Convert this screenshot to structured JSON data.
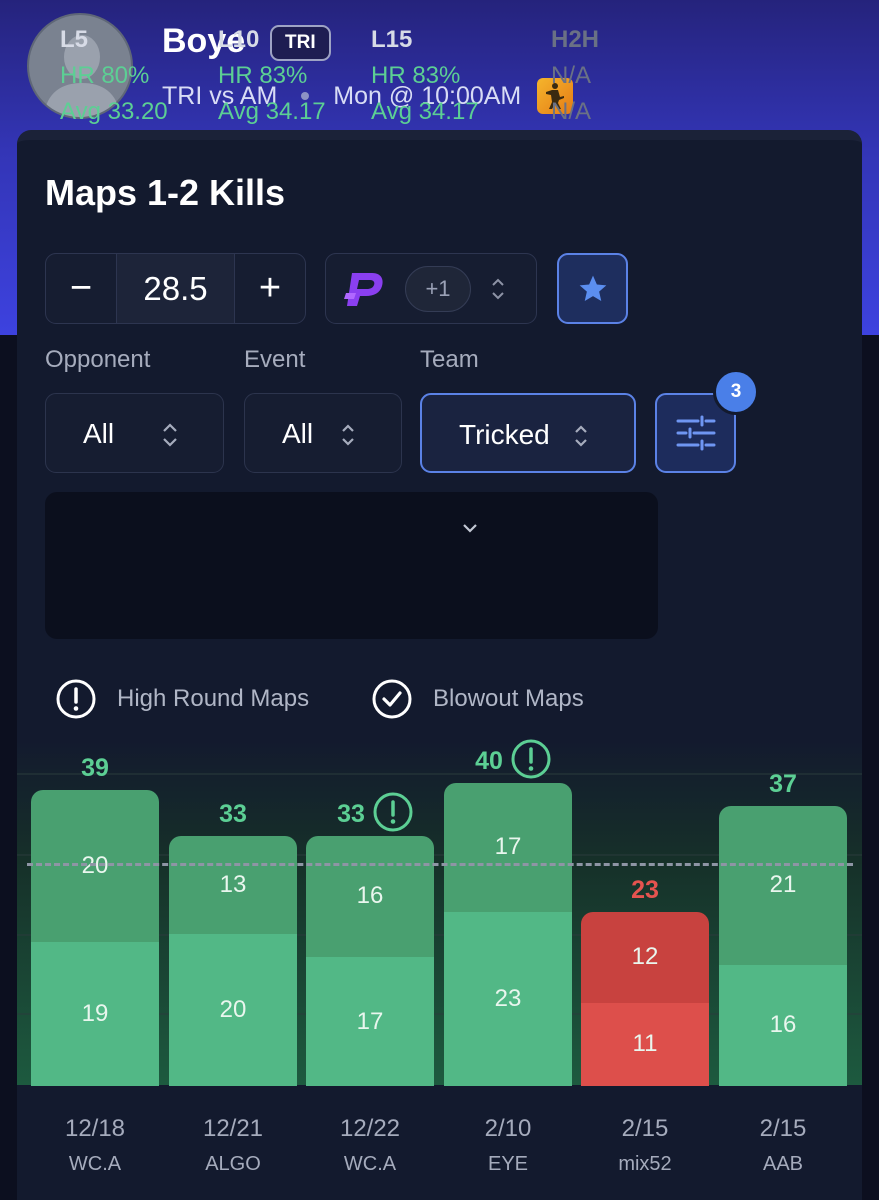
{
  "player": {
    "name": "Boye",
    "team_badge": "TRI",
    "matchup": "TRI vs AM",
    "time": "Mon @ 10:00AM",
    "game_icon": "counter-strike-icon"
  },
  "market": {
    "title": "Maps 1-2 Kills",
    "line": "28.5",
    "decrement": "−",
    "increment": "+",
    "book_logo": "prizepicks-icon",
    "boost": "+1"
  },
  "filters": {
    "opponent": {
      "label": "Opponent",
      "value": "All"
    },
    "event": {
      "label": "Event",
      "value": "All"
    },
    "team": {
      "label": "Team",
      "value": "Tricked"
    },
    "active_count": "3"
  },
  "stats": [
    {
      "label": "L5",
      "hr": "HR 80%",
      "avg": "Avg 33.20"
    },
    {
      "label": "L10",
      "hr": "HR 83%",
      "avg": "Avg 34.17"
    },
    {
      "label": "L15",
      "hr": "HR 83%",
      "avg": "Avg 34.17"
    },
    {
      "label": "H2H",
      "hr": "N/A",
      "avg": "N/A"
    }
  ],
  "legend": {
    "high_round": "High Round Maps",
    "blowout": "Blowout Maps"
  },
  "colors": {
    "over_bottom": "#52b886",
    "over_top": "#49a070",
    "under_bottom": "#dd4f4b",
    "under_top": "#c8423f",
    "over_text": "#5ccf94",
    "under_text": "#e5534f",
    "accent": "#5b82e6"
  },
  "chart_data": {
    "type": "bar",
    "stacked": true,
    "line": 28.5,
    "categories": [
      "12/18",
      "12/21",
      "12/22",
      "2/10",
      "2/15",
      "2/15"
    ],
    "events": [
      "WC.A",
      "ALGO",
      "WC.A",
      "EYE",
      "mix52",
      "AAB"
    ],
    "series": [
      {
        "values": [
          19,
          20,
          17,
          23,
          11,
          16
        ]
      },
      {
        "values": [
          20,
          13,
          16,
          17,
          12,
          21
        ]
      }
    ],
    "totals": [
      "39",
      "33",
      "33",
      "40",
      "23",
      "37"
    ],
    "high_round_flags": [
      false,
      false,
      true,
      true,
      false,
      false
    ],
    "hit": [
      true,
      true,
      true,
      true,
      false,
      true
    ],
    "segment_labels": [
      [
        "19",
        "20"
      ],
      [
        "20",
        "13"
      ],
      [
        "17",
        "16"
      ],
      [
        "23",
        "17"
      ],
      [
        "11",
        "12"
      ],
      [
        "16",
        "21"
      ]
    ]
  }
}
